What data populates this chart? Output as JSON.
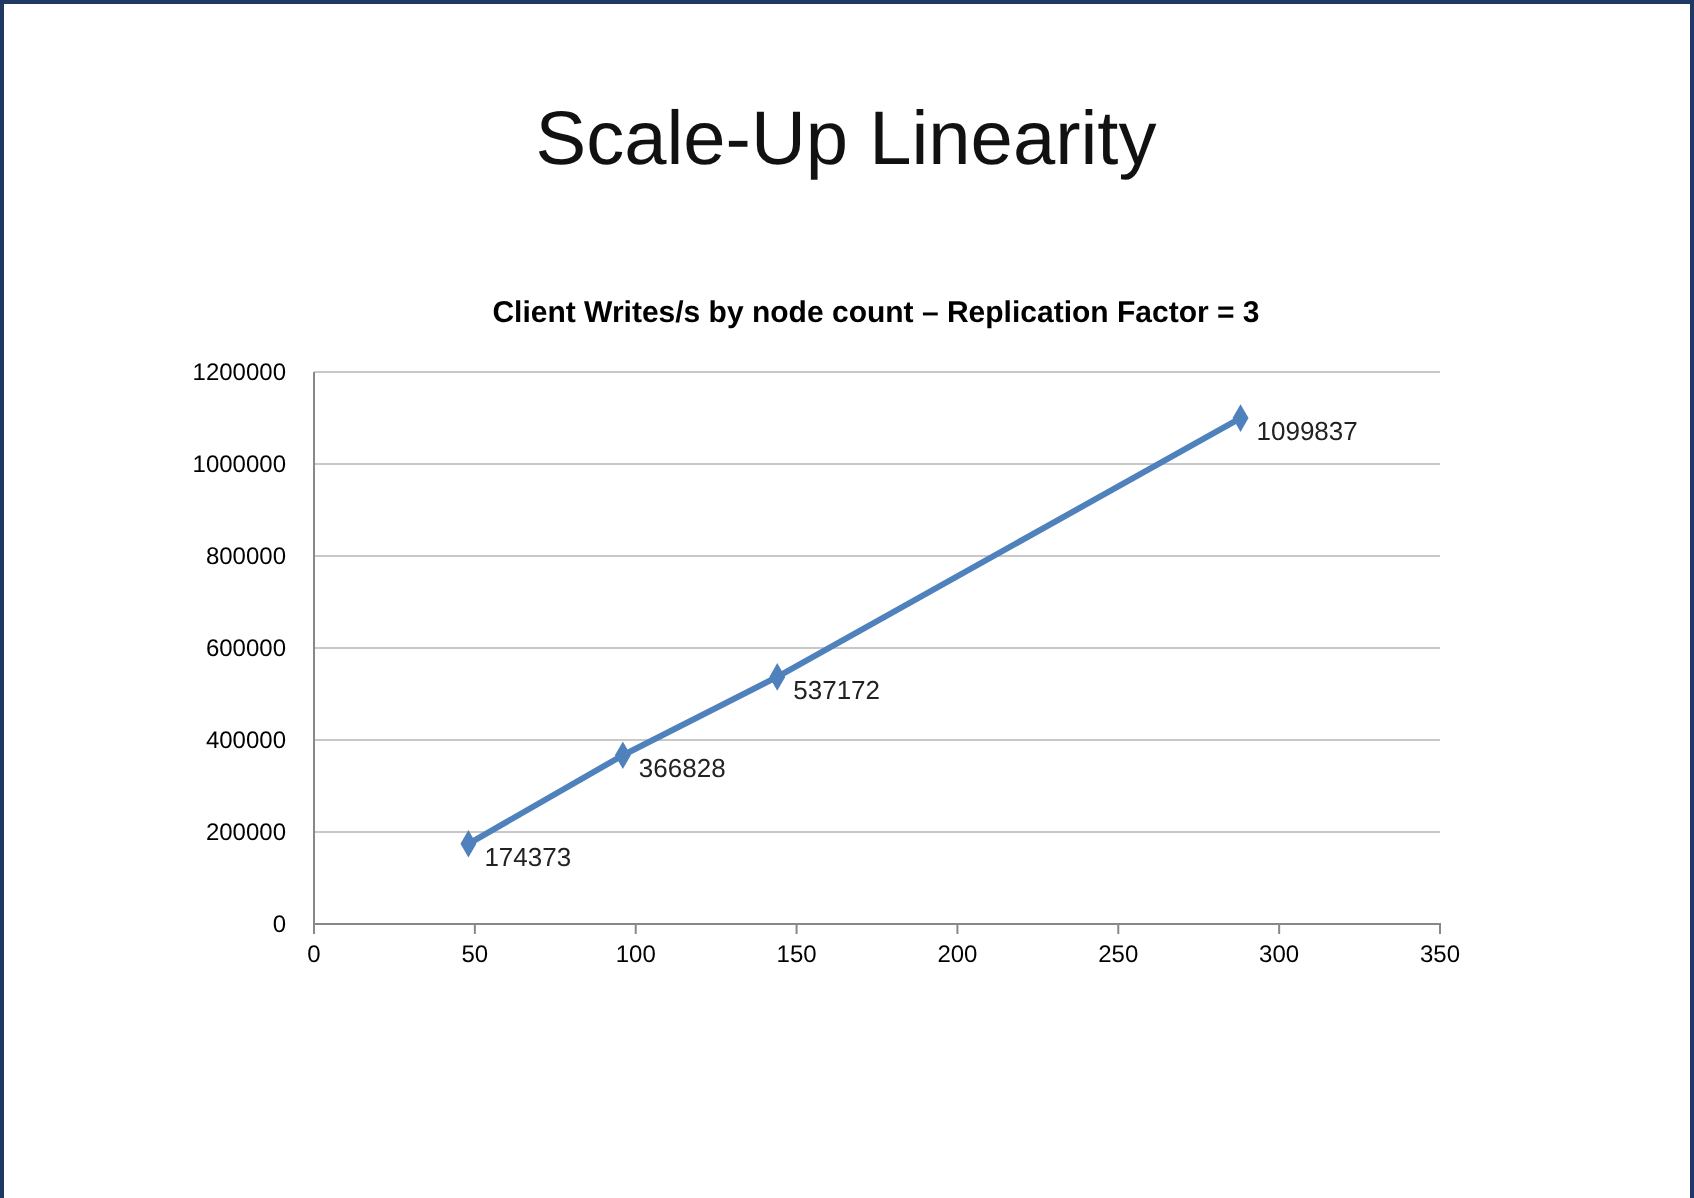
{
  "chart_data": {
    "type": "line",
    "title": "Scale-Up Linearity",
    "subtitle": "Client Writes/s by node count – Replication Factor = 3",
    "x": [
      48,
      96,
      144,
      288
    ],
    "series": [
      {
        "color": "#4f81bd",
        "values": [
          174373,
          366828,
          537172,
          1099837
        ]
      }
    ],
    "xlim": [
      0,
      350
    ],
    "xticks": [
      0,
      50,
      100,
      150,
      200,
      250,
      300,
      350
    ],
    "ylim": [
      0,
      1200000
    ],
    "yticks": [
      0,
      200000,
      400000,
      600000,
      800000,
      1000000,
      1200000
    ],
    "grid": "y",
    "marker": "diamond",
    "line_style": "solid",
    "data_labels": true
  }
}
